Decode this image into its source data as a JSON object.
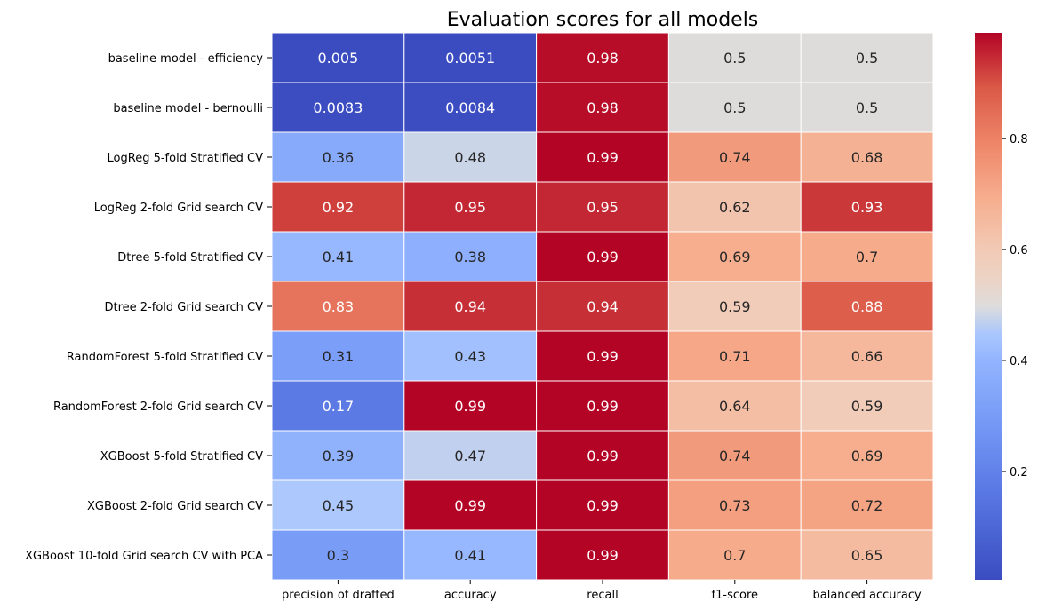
{
  "chart_data": {
    "type": "heatmap",
    "title": "Evaluation scores for all models",
    "xlabel": "",
    "ylabel": "",
    "colormap": "coolwarm",
    "columns": [
      "precision of drafted",
      "accuracy",
      "recall",
      "f1-score",
      "balanced accuracy"
    ],
    "rows": [
      "baseline model - efficiency",
      "baseline model - bernoulli",
      "LogReg 5-fold Stratified CV",
      "LogReg 2-fold Grid search CV",
      "Dtree 5-fold Stratified CV",
      "Dtree 2-fold Grid search CV",
      "RandomForest 5-fold Stratified CV",
      "RandomForest 2-fold Grid search CV",
      "XGBoost 5-fold Stratified CV",
      "XGBoost 2-fold Grid search CV",
      "XGBoost 10-fold Grid search CV with PCA"
    ],
    "values": [
      [
        0.005,
        0.0051,
        0.98,
        0.5,
        0.5
      ],
      [
        0.0083,
        0.0084,
        0.98,
        0.5,
        0.5
      ],
      [
        0.36,
        0.48,
        0.99,
        0.74,
        0.68
      ],
      [
        0.92,
        0.95,
        0.95,
        0.62,
        0.93
      ],
      [
        0.41,
        0.38,
        0.99,
        0.69,
        0.7
      ],
      [
        0.83,
        0.94,
        0.94,
        0.59,
        0.88
      ],
      [
        0.31,
        0.43,
        0.99,
        0.71,
        0.66
      ],
      [
        0.17,
        0.99,
        0.99,
        0.64,
        0.59
      ],
      [
        0.39,
        0.47,
        0.99,
        0.74,
        0.69
      ],
      [
        0.45,
        0.99,
        0.99,
        0.73,
        0.72
      ],
      [
        0.3,
        0.41,
        0.99,
        0.7,
        0.65
      ]
    ],
    "cell_labels": [
      [
        "0.005",
        "0.0051",
        "0.98",
        "0.5",
        "0.5"
      ],
      [
        "0.0083",
        "0.0084",
        "0.98",
        "0.5",
        "0.5"
      ],
      [
        "0.36",
        "0.48",
        "0.99",
        "0.74",
        "0.68"
      ],
      [
        "0.92",
        "0.95",
        "0.95",
        "0.62",
        "0.93"
      ],
      [
        "0.41",
        "0.38",
        "0.99",
        "0.69",
        "0.7"
      ],
      [
        "0.83",
        "0.94",
        "0.94",
        "0.59",
        "0.88"
      ],
      [
        "0.31",
        "0.43",
        "0.99",
        "0.71",
        "0.66"
      ],
      [
        "0.17",
        "0.99",
        "0.99",
        "0.64",
        "0.59"
      ],
      [
        "0.39",
        "0.47",
        "0.99",
        "0.74",
        "0.69"
      ],
      [
        "0.45",
        "0.99",
        "0.99",
        "0.73",
        "0.72"
      ],
      [
        "0.3",
        "0.41",
        "0.99",
        "0.7",
        "0.65"
      ]
    ],
    "colorbar": {
      "vmin": 0.005,
      "vmax": 0.99,
      "ticks": [
        0.2,
        0.4,
        0.6,
        0.8
      ],
      "tick_labels": [
        "0.2",
        "0.4",
        "0.6",
        "0.8"
      ]
    },
    "grid": false,
    "legend": "colorbar-right"
  }
}
